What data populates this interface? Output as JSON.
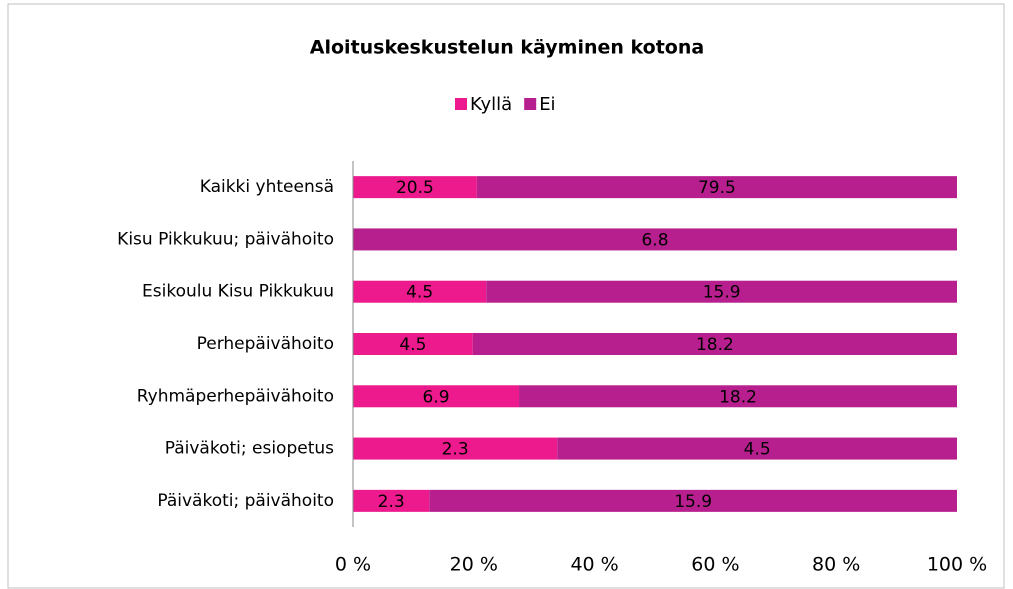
{
  "chart_data": {
    "type": "stacked_bar_horizontal_percent",
    "title": "Aloituskeskustelun käyminen kotona",
    "categories": [
      "Kaikki yhteensä",
      "Kisu Pikkukuu; päivähoito",
      "Esikoulu Kisu Pikkukuu",
      "Perhepäivähoito",
      "Ryhmäperhepäivähoito",
      "Päiväkoti; esiopetus",
      "Päiväkoti; päivähoito"
    ],
    "series": [
      {
        "name": "Kyllä",
        "color": "#ec1a8c",
        "values": [
          20.5,
          0,
          4.5,
          4.5,
          6.9,
          2.3,
          2.3
        ]
      },
      {
        "name": "Ei",
        "color": "#b71f8e",
        "values": [
          79.5,
          6.8,
          15.9,
          18.2,
          18.2,
          4.5,
          15.9
        ]
      }
    ],
    "xlim": [
      0,
      100
    ],
    "xticks": [
      {
        "value": 0,
        "label": "0 %"
      },
      {
        "value": 20,
        "label": "20 %"
      },
      {
        "value": 40,
        "label": "40 %"
      },
      {
        "value": 60,
        "label": "60 %"
      },
      {
        "value": 80,
        "label": "80 %"
      },
      {
        "value": 100,
        "label": "100 %"
      }
    ],
    "legend": "top"
  }
}
